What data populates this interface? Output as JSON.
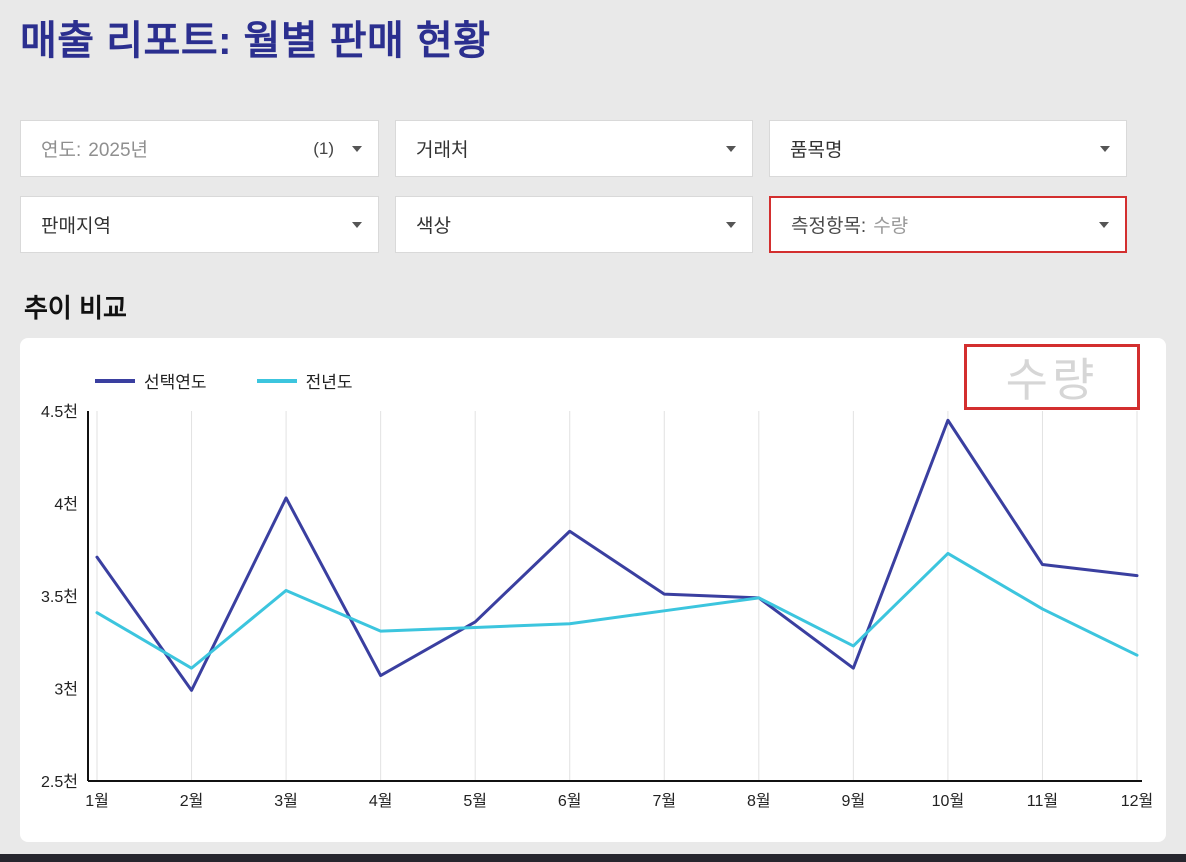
{
  "page": {
    "title": "매출 리포트: 월별 판매 현황"
  },
  "filters": [
    {
      "label": "연도:",
      "value": "2025년",
      "count": "(1)"
    },
    {
      "label": "거래처",
      "value": "",
      "count": ""
    },
    {
      "label": "품목명",
      "value": "",
      "count": ""
    },
    {
      "label": "판매지역",
      "value": "",
      "count": ""
    },
    {
      "label": "색상",
      "value": "",
      "count": ""
    },
    {
      "label": "측정항목:",
      "value": "수량",
      "count": ""
    }
  ],
  "section": {
    "title": "추이 비교"
  },
  "colors": {
    "title": "#2b2f8f",
    "highlight": "#d32f2f",
    "series_current": "#3a3fa0",
    "series_previous": "#3cc5de"
  },
  "chart_data": {
    "type": "line",
    "title": "추이 비교",
    "watermark": "수량",
    "categories": [
      "1월",
      "2월",
      "3월",
      "4월",
      "5월",
      "6월",
      "7월",
      "8월",
      "9월",
      "10월",
      "11월",
      "12월"
    ],
    "series": [
      {
        "name": "선택연도",
        "color": "#3a3fa0",
        "values": [
          3.71,
          2.99,
          4.03,
          3.07,
          3.36,
          3.85,
          3.51,
          3.49,
          3.11,
          4.45,
          3.67,
          3.61
        ]
      },
      {
        "name": "전년도",
        "color": "#3cc5de",
        "values": [
          3.41,
          3.11,
          3.53,
          3.31,
          3.33,
          3.35,
          3.42,
          3.49,
          3.23,
          3.73,
          3.43,
          3.18
        ]
      }
    ],
    "unit": "천",
    "ylim": [
      2.5,
      4.5
    ],
    "yticks": [
      2.5,
      3.0,
      3.5,
      4.0,
      4.5
    ],
    "ytick_labels": [
      "2.5천",
      "3천",
      "3.5천",
      "4천",
      "4.5천"
    ],
    "xlabel": "",
    "ylabel": "",
    "grid": "vertical",
    "legend_position": "top-left"
  }
}
